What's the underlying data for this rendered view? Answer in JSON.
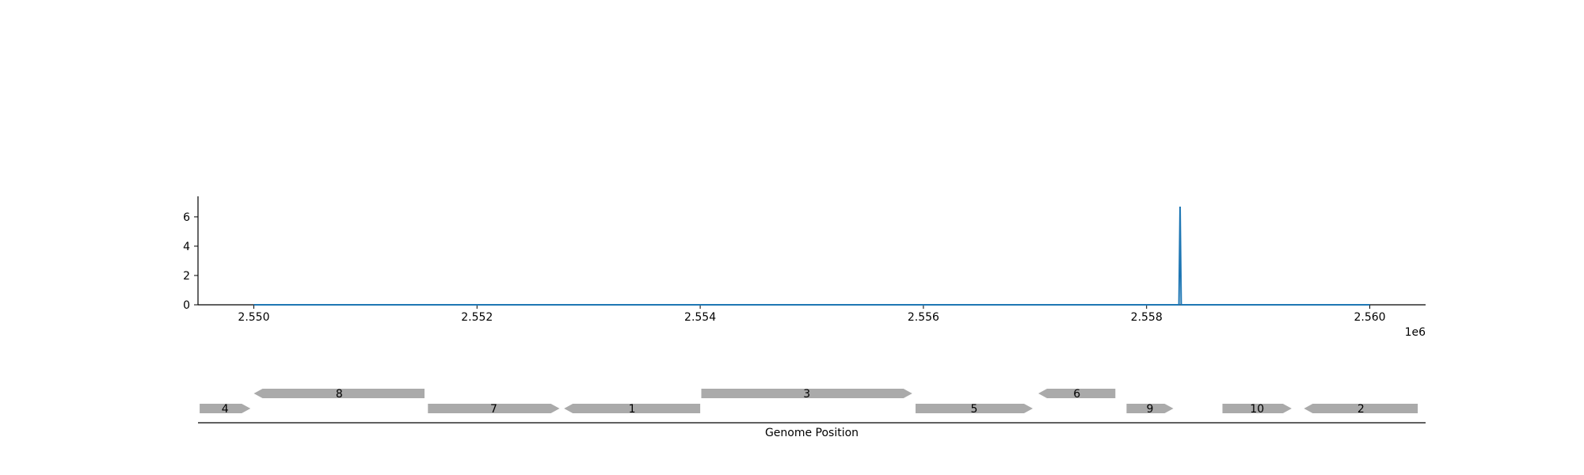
{
  "chart_data": [
    {
      "type": "line",
      "x": [
        2550000,
        2558290,
        2558300,
        2558310,
        2560000
      ],
      "series": [
        {
          "values": [
            0,
            0,
            6.7,
            0,
            0
          ]
        }
      ],
      "xlim": [
        2549500,
        2560500
      ],
      "ylim": [
        0,
        7.4
      ],
      "x_ticks": [
        2550000,
        2552000,
        2554000,
        2556000,
        2558000,
        2560000
      ],
      "x_tick_labels": [
        "2.550",
        "2.552",
        "2.554",
        "2.556",
        "2.558",
        "2.560"
      ],
      "x_offset_label": "1e6",
      "y_ticks": [
        0,
        2,
        4,
        6
      ],
      "y_tick_labels": [
        "0",
        "2",
        "4",
        "6"
      ],
      "line_color": "#1f77b4",
      "grid": false
    },
    {
      "type": "gene-map",
      "xlabel": "Genome Position",
      "xlim": [
        2549500,
        2560500
      ],
      "gene_color": "#aaaaaa",
      "genes": [
        {
          "label": "4",
          "start": 2549515,
          "end": 2549970,
          "strand": "+",
          "track": "lower"
        },
        {
          "label": "8",
          "start": 2550000,
          "end": 2551530,
          "strand": "-",
          "track": "upper"
        },
        {
          "label": "7",
          "start": 2551560,
          "end": 2552740,
          "strand": "+",
          "track": "lower"
        },
        {
          "label": "1",
          "start": 2552780,
          "end": 2554000,
          "strand": "-",
          "track": "lower"
        },
        {
          "label": "3",
          "start": 2554010,
          "end": 2555900,
          "strand": "+",
          "track": "upper"
        },
        {
          "label": "5",
          "start": 2555930,
          "end": 2556980,
          "strand": "+",
          "track": "lower"
        },
        {
          "label": "6",
          "start": 2557030,
          "end": 2557720,
          "strand": "-",
          "track": "upper"
        },
        {
          "label": "9",
          "start": 2557820,
          "end": 2558240,
          "strand": "+",
          "track": "lower"
        },
        {
          "label": "10",
          "start": 2558680,
          "end": 2559300,
          "strand": "+",
          "track": "lower"
        },
        {
          "label": "2",
          "start": 2559410,
          "end": 2560430,
          "strand": "-",
          "track": "lower"
        }
      ]
    }
  ]
}
